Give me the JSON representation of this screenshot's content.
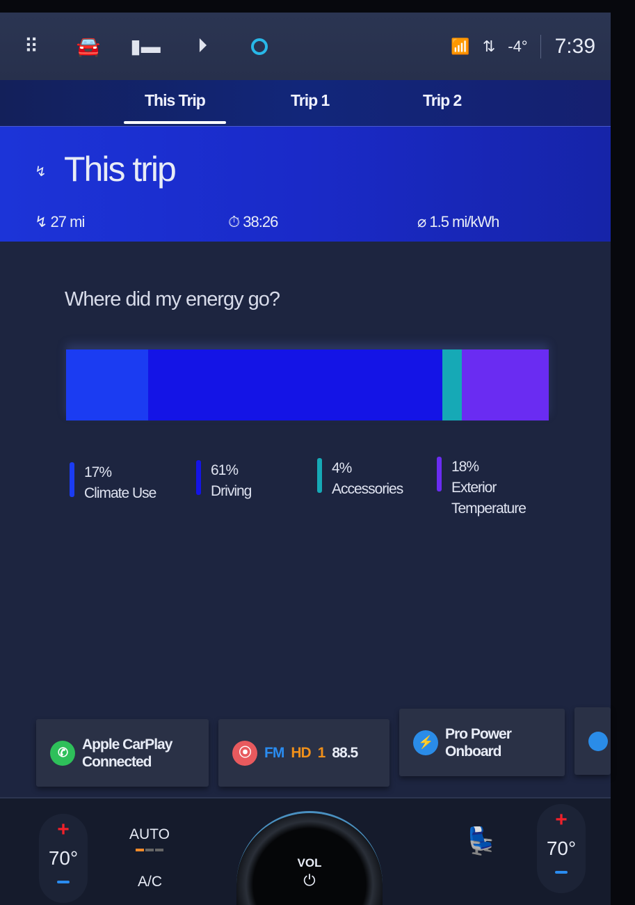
{
  "topbar": {
    "icons": [
      "apps-grid-icon",
      "vehicle-icon",
      "camera-icon",
      "media-play-icon",
      "alexa-icon"
    ],
    "wifi": "wifi-icon",
    "data": "data-transfer-icon",
    "temperature": "-4°",
    "time": "7:39"
  },
  "tabs": [
    {
      "label": "This Trip",
      "active": true
    },
    {
      "label": "Trip 1"
    },
    {
      "label": "Trip 2"
    }
  ],
  "hero": {
    "title": "This trip",
    "distance": "27 mi",
    "duration": "38:26",
    "efficiency": "1.5 mi/kWh"
  },
  "energy": {
    "question": "Where did my energy go?",
    "segments": [
      {
        "percent": 17,
        "pct_label": "17%",
        "label": "Climate Use",
        "color": "#1b3cf2"
      },
      {
        "percent": 61,
        "pct_label": "61%",
        "label": "Driving",
        "color": "#1414e6"
      },
      {
        "percent": 4,
        "pct_label": "4%",
        "label": "Accessories",
        "color": "#16a9b6"
      },
      {
        "percent": 18,
        "pct_label": "18%",
        "label": "Exterior Temperature",
        "color": "#6a2cf2"
      }
    ]
  },
  "cards": [
    {
      "line1": "Apple CarPlay",
      "line2": "Connected",
      "icon": "phone-icon",
      "color": "#2ec05a"
    },
    {
      "band": "FM",
      "hd": "1",
      "freq": "88.5",
      "icon": "radio-icon",
      "color": "#e85a5e"
    },
    {
      "line1": "Pro Power",
      "line2": "Onboard",
      "icon": "power-outlet-icon",
      "color": "#2a8ce8"
    }
  ],
  "climate": {
    "left_temp": "70°",
    "right_temp": "70°",
    "auto": "AUTO",
    "ac": "A/C",
    "vol": "VOL"
  }
}
